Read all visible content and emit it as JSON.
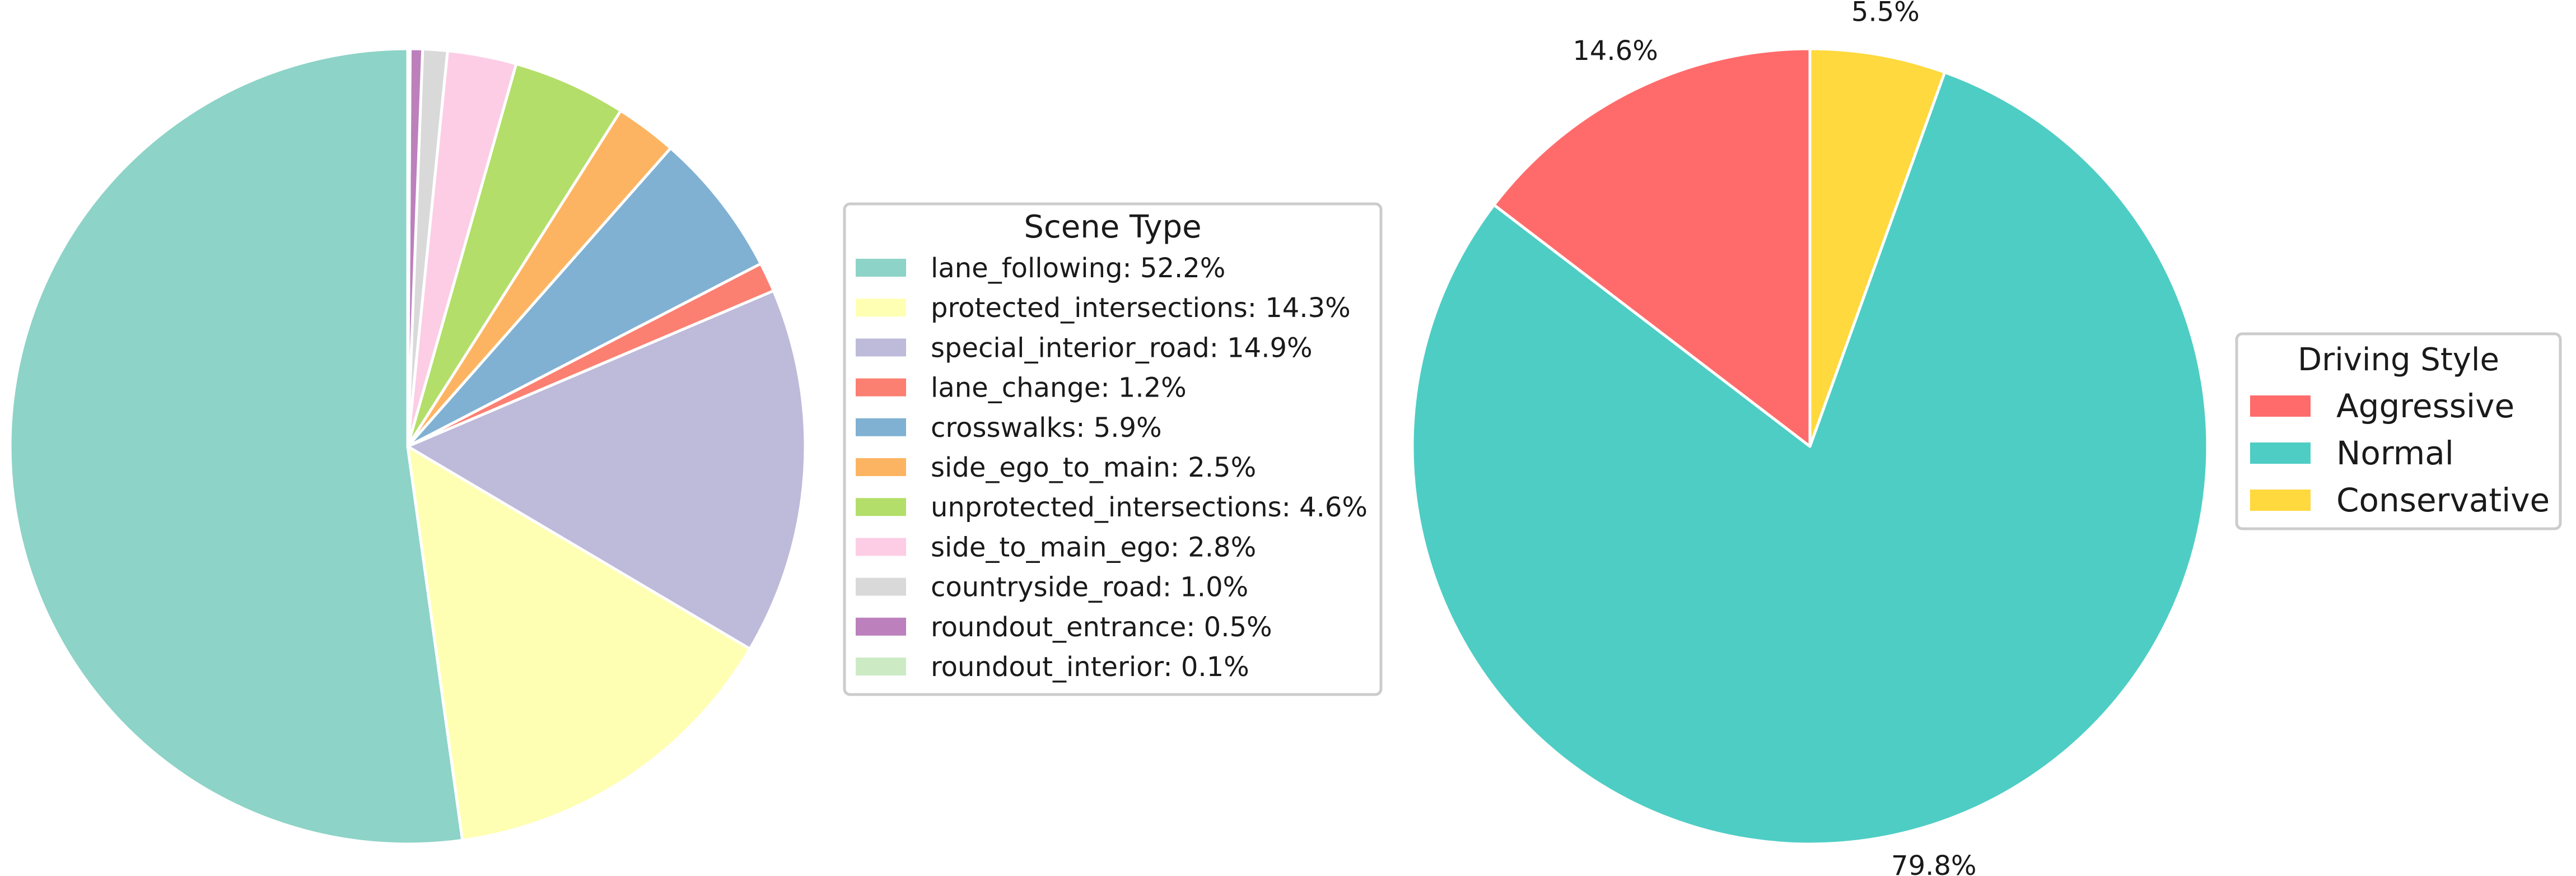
{
  "chart_data": [
    {
      "type": "pie",
      "legend": {
        "title": "Scene Type",
        "placement": "right"
      },
      "start_angle_deg": 90,
      "direction": "counterclockwise",
      "slices": [
        {
          "label": "lane_following",
          "value": 52.2,
          "legend": "lane_following: 52.2%",
          "color": "#8dd3c7"
        },
        {
          "label": "protected_intersections",
          "value": 14.3,
          "legend": "protected_intersections: 14.3%",
          "color": "#ffffb3"
        },
        {
          "label": "special_interior_road",
          "value": 14.9,
          "legend": "special_interior_road: 14.9%",
          "color": "#bebada"
        },
        {
          "label": "lane_change",
          "value": 1.2,
          "legend": "lane_change: 1.2%",
          "color": "#fb8072"
        },
        {
          "label": "crosswalks",
          "value": 5.9,
          "legend": "crosswalks: 5.9%",
          "color": "#80b1d3"
        },
        {
          "label": "side_ego_to_main",
          "value": 2.5,
          "legend": "side_ego_to_main: 2.5%",
          "color": "#fdb462"
        },
        {
          "label": "unprotected_intersections",
          "value": 4.6,
          "legend": "unprotected_intersections: 4.6%",
          "color": "#b3de69"
        },
        {
          "label": "side_to_main_ego",
          "value": 2.8,
          "legend": "side_to_main_ego: 2.8%",
          "color": "#fccde5"
        },
        {
          "label": "countryside_road",
          "value": 1.0,
          "legend": "countryside_road: 1.0%",
          "color": "#d9d9d9"
        },
        {
          "label": "roundout_entrance",
          "value": 0.5,
          "legend": "roundout_entrance: 0.5%",
          "color": "#bc80bd"
        },
        {
          "label": "roundout_interior",
          "value": 0.1,
          "legend": "roundout_interior: 0.1%",
          "color": "#ccebc5"
        }
      ]
    },
    {
      "type": "pie",
      "legend": {
        "title": "Driving Style",
        "placement": "right"
      },
      "start_angle_deg": 90,
      "direction": "counterclockwise",
      "slices": [
        {
          "label": "Aggressive",
          "value": 14.6,
          "pct_label": "14.6%",
          "color": "#ff6b6b"
        },
        {
          "label": "Normal",
          "value": 79.8,
          "pct_label": "79.8%",
          "color": "#4ecdc4"
        },
        {
          "label": "Conservative",
          "value": 5.5,
          "pct_label": "5.5%",
          "color": "#ffd93d"
        }
      ]
    }
  ]
}
